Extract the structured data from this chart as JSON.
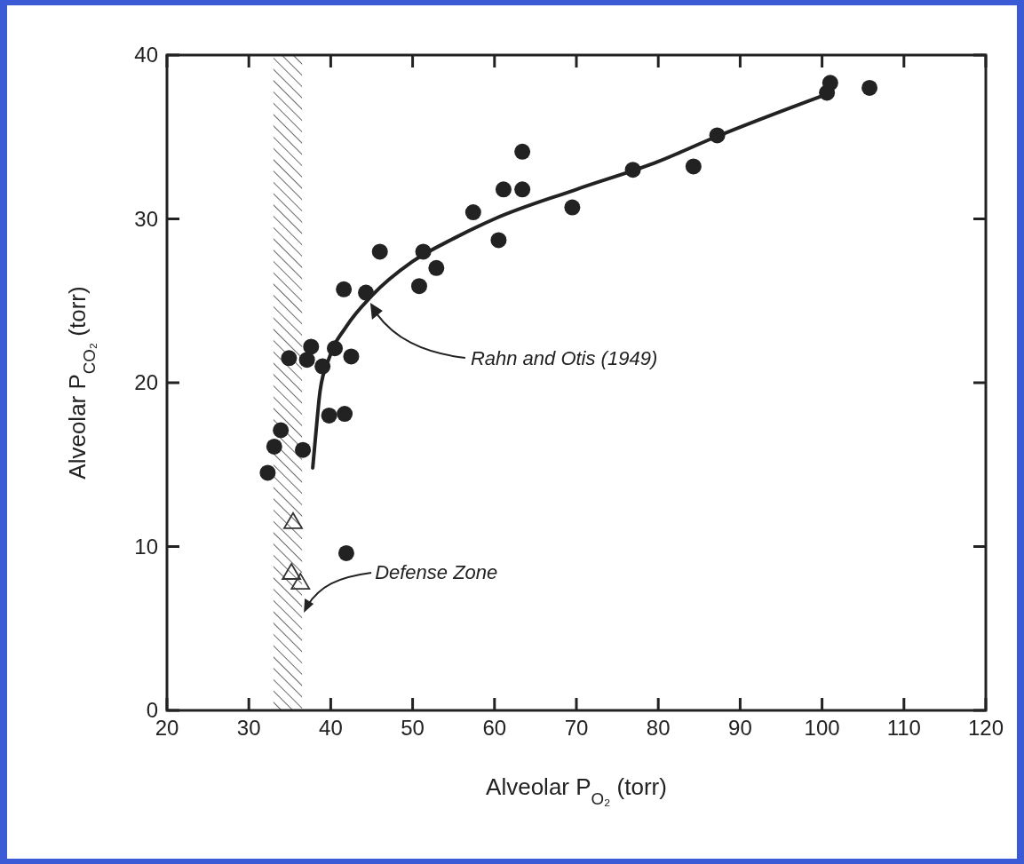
{
  "chart_data": {
    "type": "scatter",
    "xlabel": "Alveolar P$_{O₂}$ (torr)",
    "ylabel": "Alveolar P$_{CO₂}$ (torr)",
    "xlim": [
      20,
      120
    ],
    "xticks": [
      20,
      30,
      40,
      50,
      60,
      70,
      80,
      90,
      100,
      110,
      120
    ],
    "ylim": [
      0,
      40
    ],
    "yticks": [
      0,
      10,
      20,
      30,
      40
    ],
    "grid": false,
    "series": [
      {
        "marker": "circle",
        "color": "#222222",
        "x": [
          32.3,
          33.1,
          33.9,
          34.9,
          36.6,
          37.1,
          37.6,
          39.0,
          40.5,
          42.5,
          39.8,
          41.7,
          41.9,
          41.6,
          44.3,
          46.0,
          51.3,
          52.9,
          50.8,
          57.4,
          60.5,
          61.1,
          63.4,
          63.4,
          69.5,
          76.9,
          84.3,
          87.2,
          100.6,
          101.0,
          105.8
        ],
        "values": [
          14.5,
          16.1,
          17.1,
          21.5,
          15.9,
          21.4,
          22.2,
          21.0,
          22.1,
          21.6,
          18.0,
          18.1,
          9.6,
          25.7,
          25.5,
          28.0,
          28.0,
          27.0,
          25.9,
          30.4,
          28.7,
          31.8,
          31.8,
          34.1,
          30.7,
          33.0,
          33.2,
          35.1,
          37.7,
          38.3,
          38.0
        ]
      },
      {
        "marker": "triangle",
        "color": "#333333",
        "x": [
          35.4,
          35.2,
          36.3
        ],
        "values": [
          11.5,
          8.4,
          7.8
        ]
      },
      {
        "type": "line",
        "marker": "none",
        "line_style": "solid",
        "color": "#222222",
        "x": [
          37.8,
          38.2,
          38.7,
          39.8,
          42,
          45,
          50,
          55,
          60,
          70,
          80,
          87,
          100.5
        ],
        "values": [
          14.8,
          17,
          19.5,
          21.5,
          23.5,
          25.3,
          27.4,
          28.8,
          30,
          31.8,
          33.5,
          35,
          37.6
        ]
      }
    ],
    "bands": [
      {
        "axis": "x",
        "from": 33,
        "to": 36.5,
        "label": "Defense Zone",
        "color": "#444444"
      }
    ],
    "annotations": [
      "Rahn and Otis (1949)"
    ]
  }
}
